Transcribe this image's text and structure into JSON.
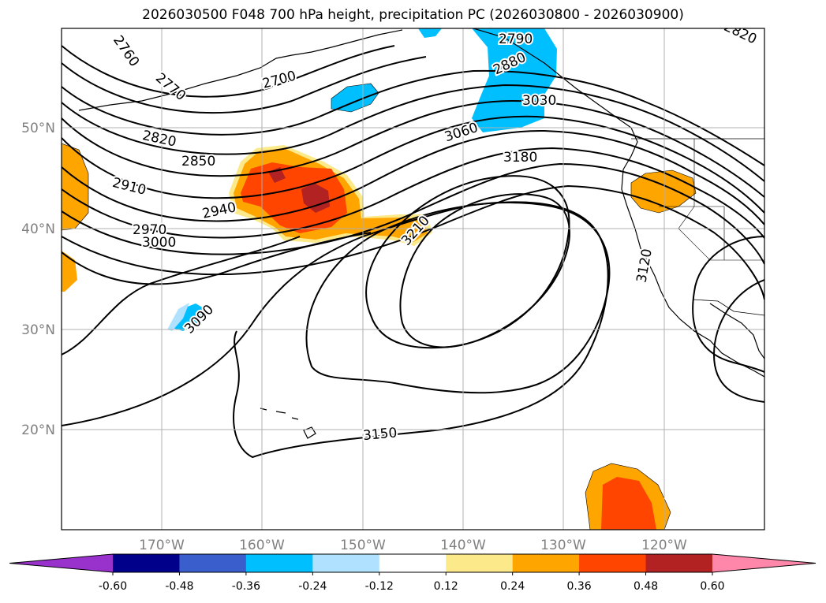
{
  "title": "2026030500 F048 700 hPa height, precipitation PC (2026030800 - 2026030900)",
  "map": {
    "lat_labels": [
      "50°N",
      "40°N",
      "30°N",
      "20°N"
    ],
    "lon_labels": [
      "170°W",
      "160°W",
      "150°W",
      "140°W",
      "130°W",
      "120°W"
    ],
    "contour_labels": [
      "2760",
      "2770",
      "2700",
      "2820",
      "2850",
      "2910",
      "2940",
      "2970",
      "3000",
      "3060",
      "3180",
      "3210",
      "3090",
      "3150",
      "3120",
      "2790",
      "2880",
      "3030",
      "2820"
    ]
  },
  "colorbar": {
    "ticks": [
      "-0.60",
      "-0.48",
      "-0.36",
      "-0.24",
      "-0.12",
      "0.12",
      "0.24",
      "0.36",
      "0.48",
      "0.60"
    ],
    "colors": [
      "#9932cc",
      "#00008b",
      "#3a5fcd",
      "#00bfff",
      "#b0e2ff",
      "#ffffff",
      "#fce98a",
      "#ffa500",
      "#ff4500",
      "#b22222",
      "#ff88aa"
    ]
  }
}
